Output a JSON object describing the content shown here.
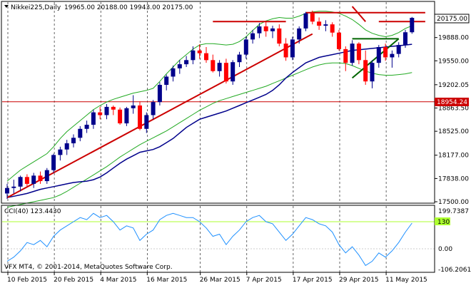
{
  "window": {
    "symbol_label": "Nikkei225,Daily",
    "ohlc_text": "19965.00 20188.00 19943.00 20175.00",
    "footer": "VFX MT4, © 2001-2014, MetaQuotes Software Corp."
  },
  "price_panel": {
    "axis_labels": [
      "20175.00",
      "19888.00",
      "19550.00",
      "19202.05",
      "18954.24",
      "18863.50",
      "18525.00",
      "18177.00",
      "17838.00",
      "17500.00"
    ],
    "current_price_label": "20175.00",
    "hline_label": "18954.24"
  },
  "cci_panel": {
    "label": "CCI(40) 123.4430",
    "axis_labels": [
      "199.7387",
      "130",
      "0.00",
      "-106.2061"
    ],
    "level_label": "130"
  },
  "x_axis": {
    "labels": [
      "10 Feb 2015",
      "20 Feb 2015",
      "4 Mar 2015",
      "16 Mar 2015",
      "26 Mar 2015",
      "7 Apr 2015",
      "17 Apr 2015",
      "29 Apr 2015",
      "11 May 2015"
    ]
  },
  "colors": {
    "bull": "#00008b",
    "bear": "#ff0000",
    "ma_blue": "#00008b",
    "bands": "#22aa22",
    "trend": "#cc0000",
    "cci": "#1e90ff",
    "cci_level": "#adff2f"
  },
  "chart_data": {
    "type": "candlestick",
    "candles": [
      {
        "o": 17620,
        "h": 17760,
        "l": 17540,
        "c": 17700
      },
      {
        "o": 17700,
        "h": 17820,
        "l": 17620,
        "c": 17720
      },
      {
        "o": 17720,
        "h": 17880,
        "l": 17650,
        "c": 17860
      },
      {
        "o": 17860,
        "h": 17900,
        "l": 17720,
        "c": 17760
      },
      {
        "o": 17760,
        "h": 17920,
        "l": 17700,
        "c": 17880
      },
      {
        "o": 17880,
        "h": 17940,
        "l": 17760,
        "c": 17800
      },
      {
        "o": 17800,
        "h": 17990,
        "l": 17760,
        "c": 17960
      },
      {
        "o": 17960,
        "h": 18200,
        "l": 17920,
        "c": 18180
      },
      {
        "o": 18180,
        "h": 18300,
        "l": 18100,
        "c": 18260
      },
      {
        "o": 18260,
        "h": 18400,
        "l": 18180,
        "c": 18350
      },
      {
        "o": 18350,
        "h": 18480,
        "l": 18290,
        "c": 18430
      },
      {
        "o": 18430,
        "h": 18600,
        "l": 18380,
        "c": 18560
      },
      {
        "o": 18560,
        "h": 18680,
        "l": 18500,
        "c": 18620
      },
      {
        "o": 18620,
        "h": 18840,
        "l": 18560,
        "c": 18800
      },
      {
        "o": 18800,
        "h": 18880,
        "l": 18700,
        "c": 18760
      },
      {
        "o": 18760,
        "h": 18920,
        "l": 18700,
        "c": 18880
      },
      {
        "o": 18880,
        "h": 18900,
        "l": 18760,
        "c": 18840
      },
      {
        "o": 18840,
        "h": 18870,
        "l": 18620,
        "c": 18640
      },
      {
        "o": 18640,
        "h": 18880,
        "l": 18600,
        "c": 18860
      },
      {
        "o": 18860,
        "h": 19050,
        "l": 18780,
        "c": 18900
      },
      {
        "o": 18900,
        "h": 18960,
        "l": 18540,
        "c": 18560
      },
      {
        "o": 18560,
        "h": 18800,
        "l": 18500,
        "c": 18760
      },
      {
        "o": 18760,
        "h": 18980,
        "l": 18700,
        "c": 18950
      },
      {
        "o": 18950,
        "h": 19240,
        "l": 18900,
        "c": 19200
      },
      {
        "o": 19200,
        "h": 19350,
        "l": 19120,
        "c": 19320
      },
      {
        "o": 19320,
        "h": 19480,
        "l": 19250,
        "c": 19440
      },
      {
        "o": 19440,
        "h": 19560,
        "l": 19360,
        "c": 19500
      },
      {
        "o": 19500,
        "h": 19620,
        "l": 19460,
        "c": 19560
      },
      {
        "o": 19560,
        "h": 19760,
        "l": 19500,
        "c": 19700
      },
      {
        "o": 19700,
        "h": 19790,
        "l": 19580,
        "c": 19660
      },
      {
        "o": 19660,
        "h": 19750,
        "l": 19520,
        "c": 19560
      },
      {
        "o": 19560,
        "h": 19640,
        "l": 19380,
        "c": 19400
      },
      {
        "o": 19400,
        "h": 19560,
        "l": 19320,
        "c": 19520
      },
      {
        "o": 19520,
        "h": 19580,
        "l": 19220,
        "c": 19250
      },
      {
        "o": 19250,
        "h": 19560,
        "l": 19200,
        "c": 19530
      },
      {
        "o": 19530,
        "h": 19680,
        "l": 19460,
        "c": 19640
      },
      {
        "o": 19640,
        "h": 19900,
        "l": 19580,
        "c": 19860
      },
      {
        "o": 19860,
        "h": 20000,
        "l": 19800,
        "c": 19950
      },
      {
        "o": 19950,
        "h": 20100,
        "l": 19880,
        "c": 20050
      },
      {
        "o": 20050,
        "h": 20120,
        "l": 19900,
        "c": 19980
      },
      {
        "o": 19980,
        "h": 20060,
        "l": 19880,
        "c": 20020
      },
      {
        "o": 20020,
        "h": 20080,
        "l": 19760,
        "c": 19800
      },
      {
        "o": 19800,
        "h": 19880,
        "l": 19550,
        "c": 19600
      },
      {
        "o": 19600,
        "h": 19900,
        "l": 19560,
        "c": 19860
      },
      {
        "o": 19860,
        "h": 20050,
        "l": 19800,
        "c": 20020
      },
      {
        "o": 20020,
        "h": 20260,
        "l": 19980,
        "c": 20240
      },
      {
        "o": 20240,
        "h": 20280,
        "l": 20080,
        "c": 20120
      },
      {
        "o": 20120,
        "h": 20180,
        "l": 20000,
        "c": 20060
      },
      {
        "o": 20060,
        "h": 20140,
        "l": 19980,
        "c": 20080
      },
      {
        "o": 20080,
        "h": 20110,
        "l": 19900,
        "c": 19960
      },
      {
        "o": 19960,
        "h": 20000,
        "l": 19700,
        "c": 19720
      },
      {
        "o": 19720,
        "h": 19760,
        "l": 19400,
        "c": 19520
      },
      {
        "o": 19520,
        "h": 19850,
        "l": 19480,
        "c": 19800
      },
      {
        "o": 19800,
        "h": 19820,
        "l": 19500,
        "c": 19560
      },
      {
        "o": 19560,
        "h": 19700,
        "l": 19200,
        "c": 19250
      },
      {
        "o": 19250,
        "h": 19560,
        "l": 19150,
        "c": 19520
      },
      {
        "o": 19520,
        "h": 19780,
        "l": 19450,
        "c": 19750
      },
      {
        "o": 19750,
        "h": 19800,
        "l": 19550,
        "c": 19600
      },
      {
        "o": 19600,
        "h": 19700,
        "l": 19450,
        "c": 19650
      },
      {
        "o": 19650,
        "h": 19820,
        "l": 19600,
        "c": 19780
      },
      {
        "o": 19780,
        "h": 20000,
        "l": 19740,
        "c": 19965
      },
      {
        "o": 19965,
        "h": 20188,
        "l": 19943,
        "c": 20175
      }
    ],
    "ma_blue": [
      17560,
      17580,
      17600,
      17620,
      17650,
      17680,
      17700,
      17720,
      17740,
      17760,
      17780,
      17790,
      17800,
      17820,
      17860,
      17920,
      17990,
      18060,
      18120,
      18170,
      18220,
      18240,
      18260,
      18300,
      18360,
      18420,
      18500,
      18580,
      18640,
      18700,
      18730,
      18760,
      18790,
      18820,
      18860,
      18900,
      18940,
      18980,
      19020,
      19060,
      19120,
      19200,
      19300,
      19380,
      19450,
      19520,
      19560,
      19600,
      19620,
      19640,
      19660,
      19680,
      19700,
      19710,
      19720,
      19730,
      19740,
      19750,
      19760,
      19770,
      19780,
      19790
    ],
    "band_upper": [
      17800,
      17880,
      17960,
      18020,
      18080,
      18140,
      18200,
      18300,
      18420,
      18520,
      18600,
      18680,
      18760,
      18840,
      18900,
      18950,
      18990,
      19020,
      19050,
      19080,
      19100,
      19120,
      19150,
      19250,
      19360,
      19460,
      19560,
      19640,
      19720,
      19780,
      19800,
      19800,
      19790,
      19780,
      19790,
      19830,
      19900,
      19990,
      20080,
      20130,
      20160,
      20180,
      20170,
      20170,
      20200,
      20240,
      20260,
      20270,
      20270,
      20260,
      20240,
      20200,
      20150,
      20080,
      20000,
      19950,
      19920,
      19900,
      19920,
      19960,
      20020,
      20060
    ],
    "band_lower": [
      17420,
      17440,
      17460,
      17480,
      17500,
      17520,
      17540,
      17560,
      17600,
      17650,
      17710,
      17770,
      17830,
      17890,
      17950,
      18010,
      18080,
      18150,
      18210,
      18270,
      18330,
      18380,
      18430,
      18480,
      18530,
      18590,
      18650,
      18710,
      18770,
      18830,
      18880,
      18930,
      18970,
      19000,
      19030,
      19060,
      19090,
      19120,
      19150,
      19180,
      19220,
      19260,
      19300,
      19340,
      19380,
      19420,
      19460,
      19490,
      19510,
      19520,
      19520,
      19510,
      19480,
      19440,
      19400,
      19370,
      19350,
      19340,
      19340,
      19350,
      19360,
      19380
    ],
    "trendlines": [
      {
        "from": [
          0,
          17560
        ],
        "to": [
          46,
          19940
        ]
      },
      {
        "from": [
          31,
          20120
        ],
        "to": [
          42,
          20120
        ]
      },
      {
        "from": [
          52,
          19300
        ],
        "to": [
          59,
          19870
        ]
      },
      {
        "from": [
          52,
          19870
        ],
        "to": [
          59,
          19870
        ]
      },
      {
        "from": [
          56,
          20120
        ],
        "to": [
          63,
          20120
        ]
      },
      {
        "from": [
          52,
          20340
        ],
        "to": [
          54,
          20120
        ]
      },
      {
        "from": [
          45,
          20250
        ],
        "to": [
          63,
          20250
        ]
      }
    ],
    "cci": [
      -60,
      -40,
      -10,
      30,
      20,
      40,
      10,
      60,
      90,
      110,
      130,
      150,
      140,
      170,
      150,
      160,
      130,
      90,
      110,
      100,
      40,
      70,
      90,
      140,
      160,
      170,
      160,
      150,
      150,
      130,
      100,
      60,
      70,
      20,
      60,
      90,
      130,
      150,
      160,
      130,
      120,
      80,
      40,
      70,
      110,
      150,
      140,
      120,
      110,
      80,
      20,
      -20,
      10,
      -30,
      -80,
      -60,
      -20,
      -40,
      -10,
      30,
      80,
      123
    ]
  }
}
